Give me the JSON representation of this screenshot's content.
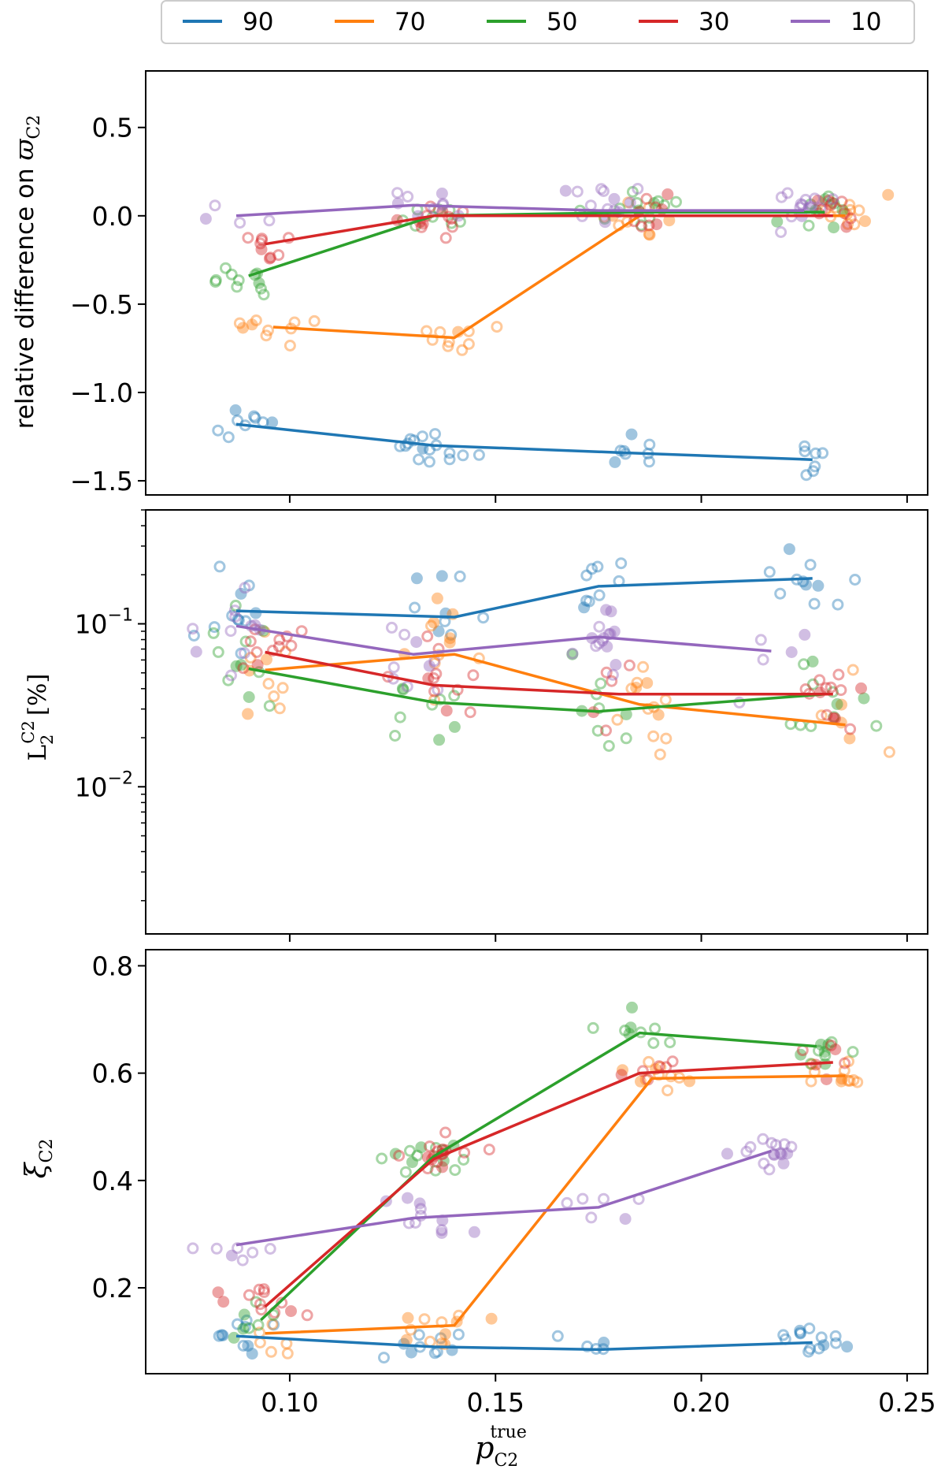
{
  "chart_data": {
    "type": "line",
    "shared_x": {
      "label": "p_C2^true",
      "xlim": [
        0.065,
        0.255
      ],
      "ticks": [
        0.1,
        0.15,
        0.2,
        0.25
      ],
      "tick_labels": [
        "0.10",
        "0.15",
        "0.20",
        "0.25"
      ]
    },
    "legend": {
      "placement": "top-center, above plots",
      "entries": [
        "90",
        "70",
        "50",
        "30",
        "10"
      ]
    },
    "colors": {
      "90": "#1f77b4",
      "70": "#ff7f0e",
      "50": "#2ca02c",
      "30": "#d62728",
      "10": "#9467bd"
    },
    "panels": [
      {
        "name": "relative-difference",
        "ylabel": "relative difference on ϖ_C2",
        "yscale": "linear",
        "ylim": [
          -1.58,
          0.82
        ],
        "yticks": [
          0.5,
          0.0,
          -0.5,
          -1.0,
          -1.5
        ],
        "ytick_labels": [
          "0.5",
          "0.0",
          "−0.5",
          "−1.0",
          "−1.5"
        ],
        "series": [
          {
            "name": "90",
            "x": [
              0.087,
              0.135,
              0.18,
              0.227
            ],
            "y": [
              -1.18,
              -1.3,
              -1.34,
              -1.38
            ]
          },
          {
            "name": "70",
            "x": [
              0.096,
              0.14,
              0.185,
              0.235
            ],
            "y": [
              -0.63,
              -0.69,
              0.0,
              0.0
            ]
          },
          {
            "name": "50",
            "x": [
              0.09,
              0.135,
              0.185,
              0.23
            ],
            "y": [
              -0.34,
              0.0,
              0.02,
              0.02
            ]
          },
          {
            "name": "30",
            "x": [
              0.094,
              0.135,
              0.185,
              0.232
            ],
            "y": [
              -0.16,
              0.0,
              0.0,
              0.0
            ]
          },
          {
            "name": "10",
            "x": [
              0.087,
              0.13,
              0.175,
              0.225
            ],
            "y": [
              0.0,
              0.06,
              0.03,
              0.03
            ]
          }
        ]
      },
      {
        "name": "l2-error",
        "ylabel": "L_2^C2 [%]",
        "yscale": "log",
        "ylim": [
          0.00125,
          0.5
        ],
        "yticks": [
          0.1,
          0.01
        ],
        "ytick_labels": [
          "10^-1",
          "10^-2"
        ],
        "series": [
          {
            "name": "90",
            "x": [
              0.087,
              0.14,
              0.175,
              0.227
            ],
            "y": [
              0.12,
              0.11,
              0.17,
              0.19
            ]
          },
          {
            "name": "70",
            "x": [
              0.094,
              0.14,
              0.185,
              0.235
            ],
            "y": [
              0.052,
              0.065,
              0.032,
              0.024
            ]
          },
          {
            "name": "50",
            "x": [
              0.09,
              0.135,
              0.175,
              0.23
            ],
            "y": [
              0.053,
              0.033,
              0.029,
              0.037
            ]
          },
          {
            "name": "30",
            "x": [
              0.094,
              0.135,
              0.18,
              0.232
            ],
            "y": [
              0.067,
              0.042,
              0.037,
              0.037
            ]
          },
          {
            "name": "10",
            "x": [
              0.087,
              0.13,
              0.175,
              0.217
            ],
            "y": [
              0.097,
              0.065,
              0.083,
              0.068
            ]
          }
        ]
      },
      {
        "name": "xi",
        "ylabel": "ξ_C2",
        "yscale": "linear",
        "ylim": [
          0.04,
          0.83
        ],
        "yticks": [
          0.8,
          0.6,
          0.4,
          0.2
        ],
        "ytick_labels": [
          "0.8",
          "0.6",
          "0.4",
          "0.2"
        ],
        "series": [
          {
            "name": "90",
            "x": [
              0.087,
              0.135,
              0.175,
              0.227
            ],
            "y": [
              0.11,
              0.09,
              0.085,
              0.098
            ]
          },
          {
            "name": "70",
            "x": [
              0.094,
              0.14,
              0.188,
              0.235
            ],
            "y": [
              0.115,
              0.13,
              0.59,
              0.595
            ]
          },
          {
            "name": "50",
            "x": [
              0.093,
              0.135,
              0.185,
              0.228
            ],
            "y": [
              0.14,
              0.445,
              0.675,
              0.65
            ]
          },
          {
            "name": "30",
            "x": [
              0.094,
              0.135,
              0.185,
              0.232
            ],
            "y": [
              0.165,
              0.44,
              0.6,
              0.62
            ]
          },
          {
            "name": "10",
            "x": [
              0.087,
              0.13,
              0.175,
              0.217
            ],
            "y": [
              0.28,
              0.33,
              0.35,
              0.455
            ]
          }
        ]
      }
    ]
  }
}
